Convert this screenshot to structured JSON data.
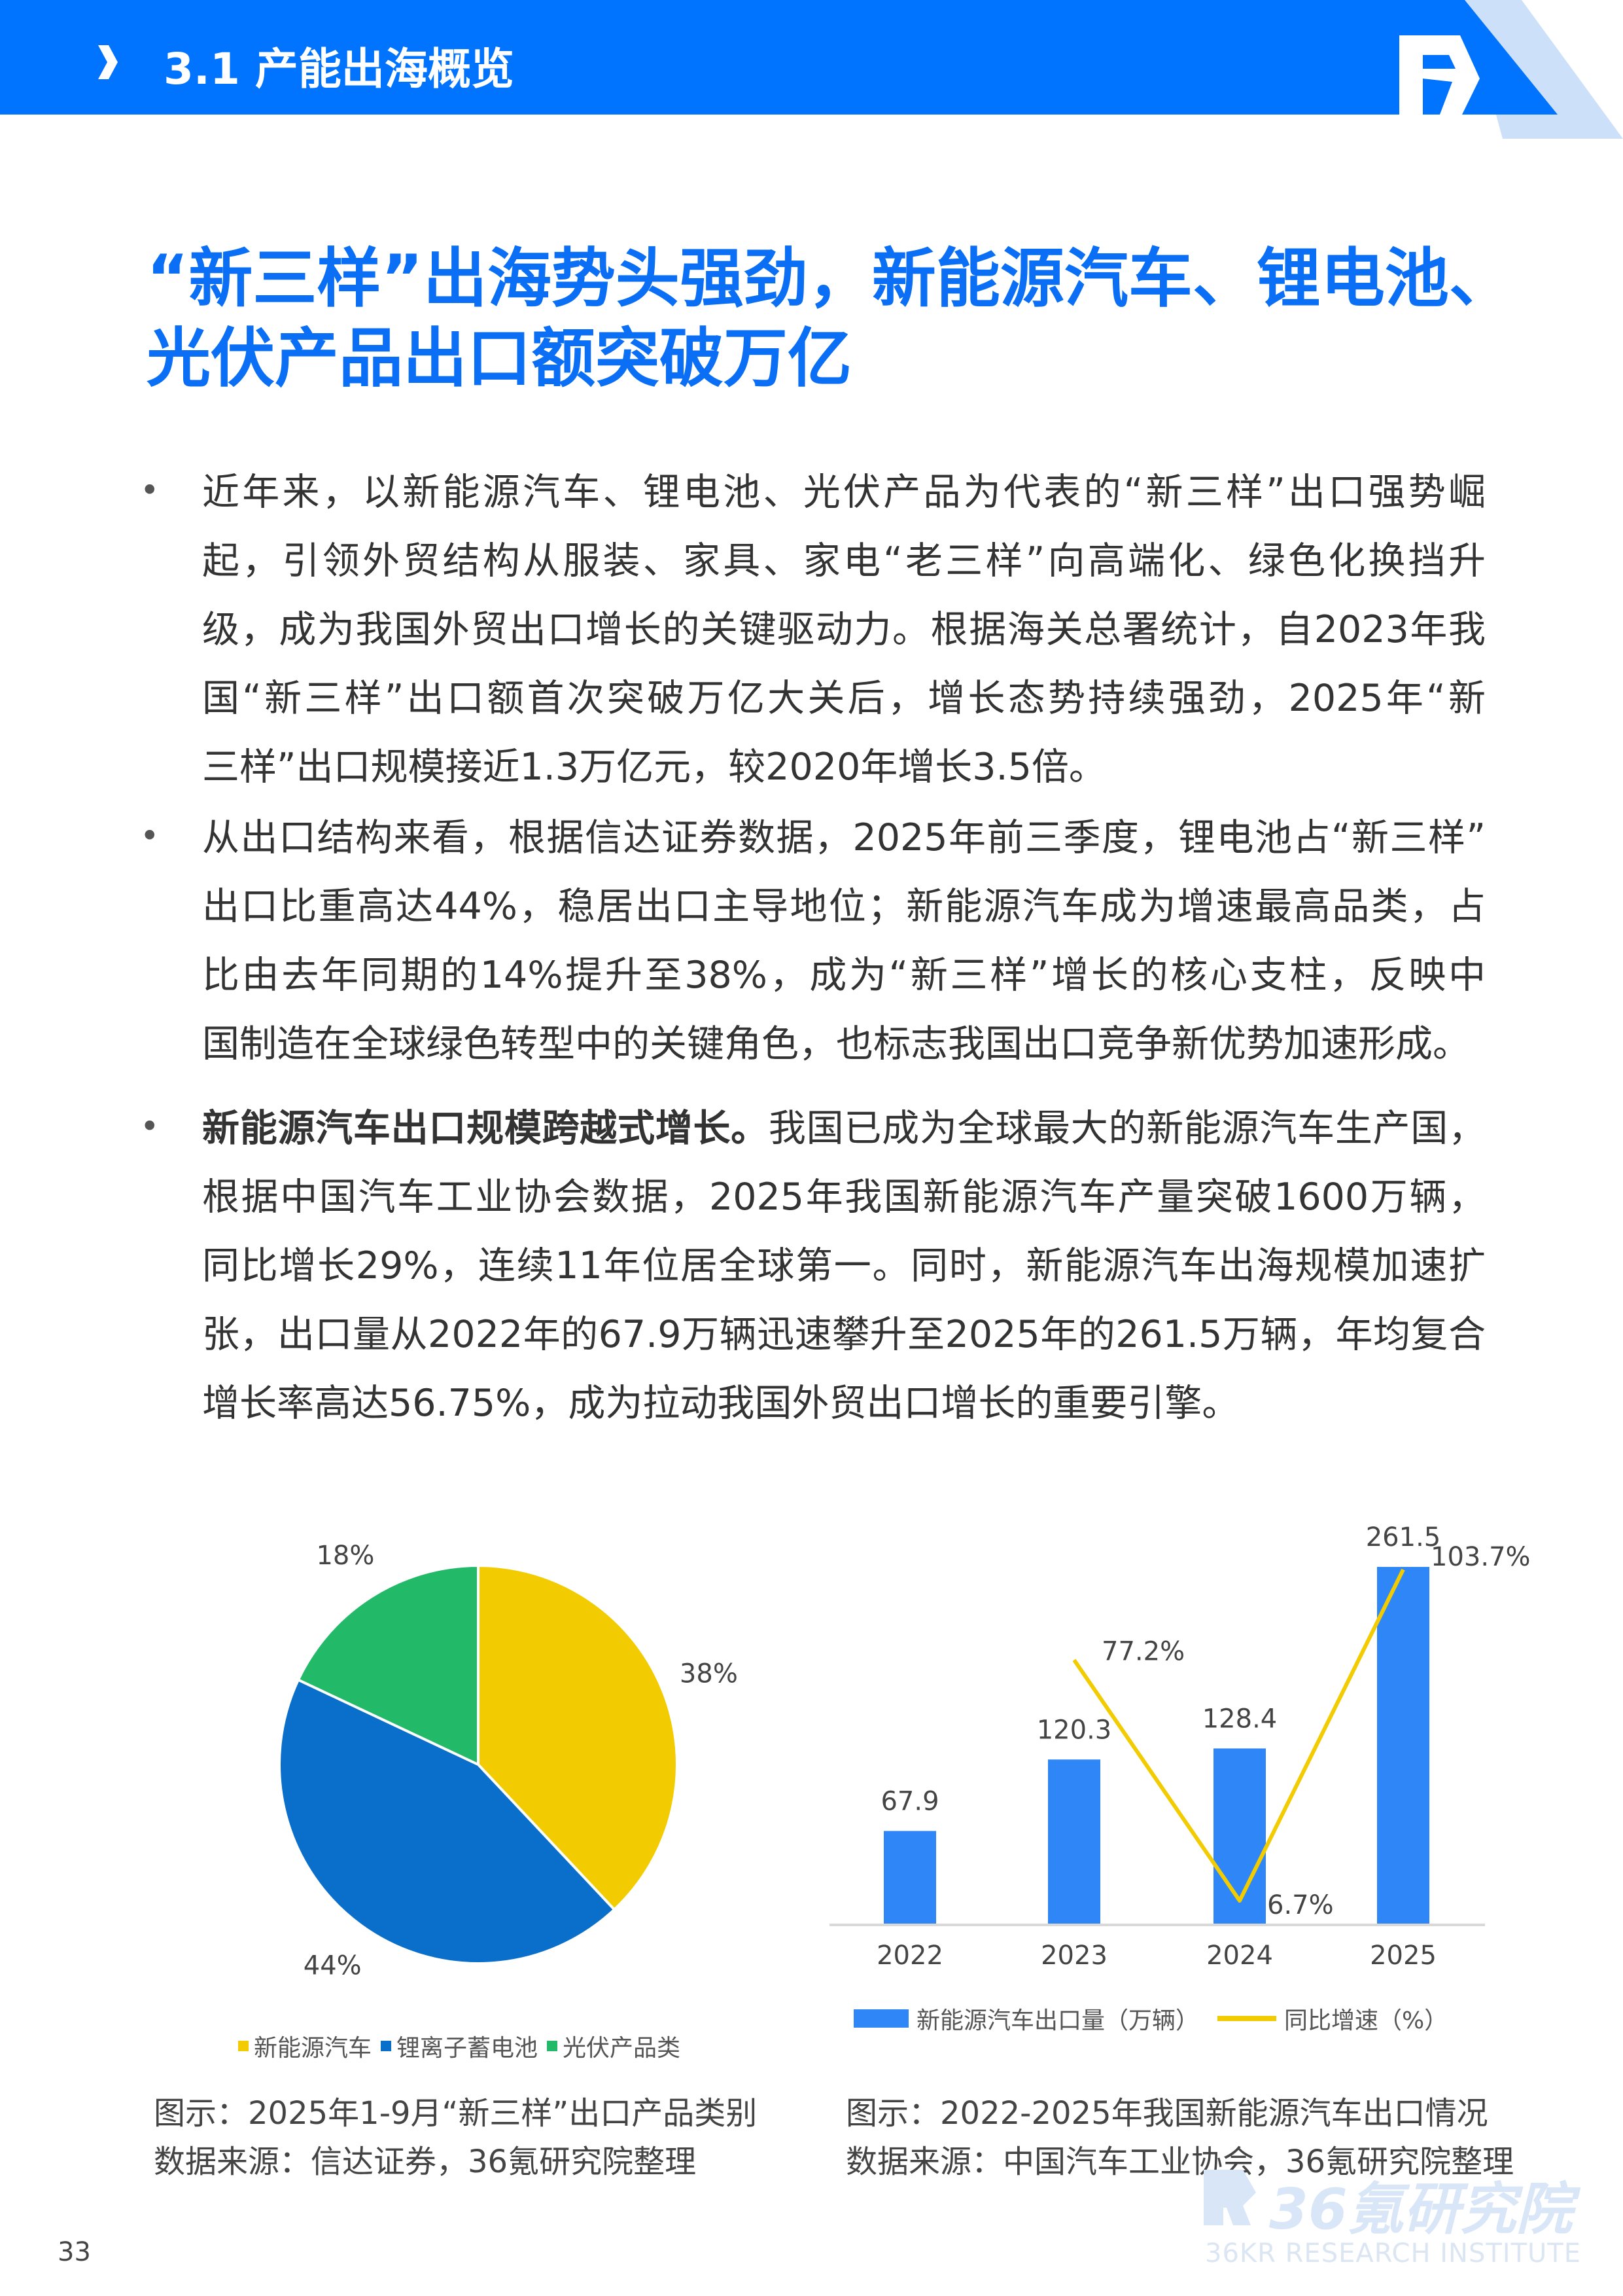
{
  "header": {
    "section_title": "3.1 产能出海概览",
    "icon": "chevron-right-icon",
    "logo": "36kr-r-logo",
    "colors": {
      "bar": "#0073FF",
      "stripe": "#CCE0FA"
    }
  },
  "title": "“新三样”出海势头强劲，新能源汽车、锂电池、光伏产品出口额突破万亿",
  "paragraphs": [
    {
      "lines": [
        "近年来，以新能源汽车、锂电池、光伏产品为代表的“新三样”出口强势崛",
        "起，引领外贸结构从服装、家具、家电“老三样”向高端化、绿色化换挡升",
        "级，成为我国外贸出口增长的关键驱动力。根据海关总署统计，自2023年我",
        "国“新三样”出口额首次突破万亿大关后，增长态势持续强劲，2025年“新",
        "三样”出口规模接近1.3万亿元，较2020年增长3.5倍。"
      ]
    },
    {
      "lines": [
        "从出口结构来看，根据信达证券数据，2025年前三季度，锂电池占“新三样”",
        "出口比重高达44%，稳居出口主导地位；新能源汽车成为增速最高品类，占",
        "比由去年同期的14%提升至38%，成为“新三样”增长的核心支柱，反映中",
        "国制造在全球绿色转型中的关键角色，也标志我国出口竞争新优势加速形成。"
      ]
    },
    {
      "bold_lead": "新能源汽车出口规模跨越式增长。",
      "lead_rest": "我国已成为全球最大的新能源汽车生产国，",
      "lines": [
        "根据中国汽车工业协会数据，2025年我国新能源汽车产量突破1600万辆，",
        "同比增长29%，连续11年位居全球第一。同时，新能源汽车出海规模加速扩",
        "张，出口量从2022年的67.9万辆迅速攀升至2025年的261.5万辆，年均复合",
        "增长率高达56.75%，成为拉动我国外贸出口增长的重要引擎。"
      ]
    }
  ],
  "chart_data": [
    {
      "type": "pie",
      "categories": [
        "新能源汽车",
        "锂离子蓄电池",
        "光伏产品类"
      ],
      "values": [
        38,
        44,
        18
      ],
      "labels": [
        "38%",
        "44%",
        "18%"
      ],
      "colors": [
        "#F2CC00",
        "#0A6FCB",
        "#22B968"
      ],
      "legend_position": "bottom",
      "caption": "图示：2025年1-9月“新三样”出口产品类别",
      "source": "数据来源：信达证券，36氪研究院整理"
    },
    {
      "type": "bar+line",
      "categories": [
        "2022",
        "2023",
        "2024",
        "2025"
      ],
      "series": [
        {
          "name": "新能源汽车出口量（万辆）",
          "type": "bar",
          "values": [
            67.9,
            120.3,
            128.4,
            261.5
          ],
          "labels": [
            "67.9",
            "120.3",
            "128.4",
            "261.5"
          ],
          "color": "#2F86F6"
        },
        {
          "name": "同比增速（%）",
          "type": "line",
          "values": [
            null,
            77.2,
            6.7,
            103.7
          ],
          "labels": [
            "",
            "77.2%",
            "6.7%",
            "103.7%"
          ],
          "color": "#F2CC00"
        }
      ],
      "grid": false,
      "legend_position": "bottom",
      "caption": "图示：2022-2025年我国新能源汽车出口情况",
      "source": "数据来源：中国汽车工业协会，36氪研究院整理"
    }
  ],
  "footer": {
    "page_number": "33",
    "watermark_cn": "36氪研究院",
    "watermark_en": "36KR RESEARCH INSTITUTE"
  }
}
